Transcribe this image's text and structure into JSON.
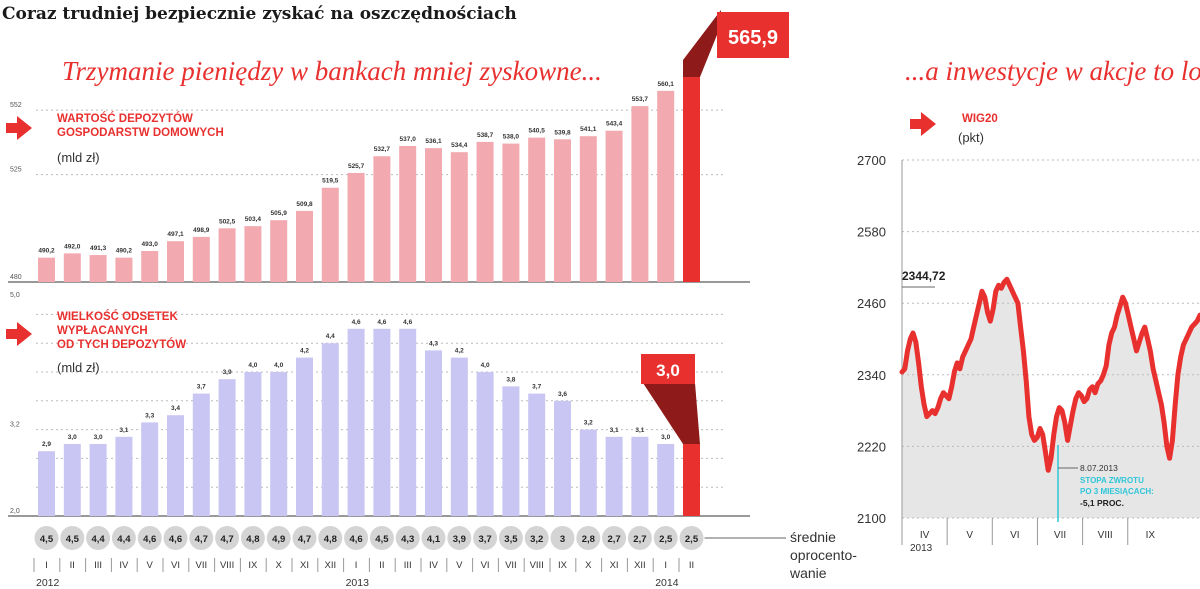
{
  "header": {
    "title": "Coraz trudniej bezpiecznie zyskać na oszczędnościach",
    "subtitle_left": "Trzymanie pieniędzy w bankach mniej zyskowne...",
    "subtitle_right": "...a inwestycje w akcje to lo"
  },
  "colors": {
    "accent": "#e8302f",
    "pink_bar": "#f2aab0",
    "lavender_bar": "#c9c6f3",
    "grey_fill": "#e6e6e6",
    "rate_circle": "#d4d4d4",
    "highlight_dark": "#8e1a1a",
    "cyan": "#2fc6d8"
  },
  "chart_data": [
    {
      "type": "bar",
      "id": "deposits",
      "title": "WARTOŚĆ DEPOZYTÓW GOSPODARSTW DOMOWYCH",
      "title_lines": [
        "WARTOŚĆ DEPOZYTÓW",
        "GOSPODARSTW DOMOWYCH"
      ],
      "unit": "(mld zł)",
      "ylim": [
        480,
        568
      ],
      "ticks": [
        {
          "v": 480,
          "label": "480"
        },
        {
          "v": 525,
          "label": "525"
        },
        {
          "v": 552,
          "label": "552"
        }
      ],
      "values": [
        490.2,
        492.0,
        491.3,
        490.2,
        493.0,
        497.1,
        498.9,
        502.5,
        503.4,
        505.9,
        509.8,
        519.5,
        525.7,
        532.7,
        537.0,
        536.1,
        534.4,
        538.7,
        538.0,
        540.5,
        539.8,
        541.1,
        543.4,
        553.7,
        560.1,
        565.9
      ],
      "labels": [
        "490,2",
        "492,0",
        "491,3",
        "490,2",
        "493,0",
        "497,1",
        "498,9",
        "502,5",
        "503,4",
        "505,9",
        "509,8",
        "519,5",
        "525,7",
        "532,7",
        "537,0",
        "536,1",
        "534,4",
        "538,7",
        "538,0",
        "540,5",
        "539,8",
        "541,1",
        "543,4",
        "553,7",
        "560,1",
        "565,9"
      ],
      "highlight": "565,9"
    },
    {
      "type": "bar",
      "id": "interest",
      "title": "WIELKOŚĆ ODSETEK WYPŁACANYCH OD TYCH DEPOZYTÓW",
      "title_lines": [
        "WIELKOŚĆ ODSETEK",
        "WYPŁACANYCH",
        "OD TYCH DEPOZYTÓW"
      ],
      "unit": "(mld zł)",
      "ylim": [
        2.0,
        5.0
      ],
      "ticks": [
        {
          "v": 2.0,
          "label": "2,0"
        },
        {
          "v": 3.2,
          "label": "3,2"
        },
        {
          "v": 5.0,
          "label": "5,0"
        }
      ],
      "values": [
        2.9,
        3.0,
        3.0,
        3.1,
        3.3,
        3.4,
        3.7,
        3.9,
        4.0,
        4.0,
        4.2,
        4.4,
        4.6,
        4.6,
        4.6,
        4.3,
        4.2,
        4.0,
        3.8,
        3.7,
        3.6,
        3.2,
        3.1,
        3.1,
        3.0,
        3.0
      ],
      "labels": [
        "2,9",
        "3,0",
        "3,0",
        "3,1",
        "3,3",
        "3,4",
        "3,7",
        "3,9",
        "4,0",
        "4,0",
        "4,2",
        "4,4",
        "4,6",
        "4,6",
        "4,6",
        "4,3",
        "4,2",
        "4,0",
        "3,8",
        "3,7",
        "3,6",
        "3,2",
        "3,1",
        "3,1",
        "3,0",
        "3,0"
      ],
      "highlight": "3,0"
    },
    {
      "type": "line",
      "id": "wig20",
      "title": "WIG20",
      "unit": "(pkt)",
      "ylim": [
        2100,
        2700
      ],
      "ticks": [
        "2100",
        "2220",
        "2340",
        "2460",
        "2580",
        "2700"
      ],
      "ticks_values": [
        2100,
        2220,
        2340,
        2460,
        2580,
        2700
      ],
      "start_label": "2344,72",
      "values": [
        2344.72,
        2350,
        2380,
        2400,
        2410,
        2395,
        2360,
        2320,
        2290,
        2270,
        2275,
        2280,
        2275,
        2285,
        2300,
        2310,
        2305,
        2300,
        2320,
        2345,
        2360,
        2350,
        2370,
        2380,
        2390,
        2400,
        2420,
        2440,
        2460,
        2480,
        2470,
        2445,
        2430,
        2450,
        2480,
        2490,
        2485,
        2495,
        2500,
        2490,
        2480,
        2470,
        2460,
        2420,
        2380,
        2330,
        2270,
        2240,
        2230,
        2235,
        2250,
        2240,
        2210,
        2180,
        2200,
        2240,
        2270,
        2285,
        2280,
        2260,
        2230,
        2255,
        2280,
        2300,
        2310,
        2305,
        2295,
        2300,
        2315,
        2320,
        2310,
        2325,
        2330,
        2340,
        2355,
        2390,
        2410,
        2420,
        2440,
        2455,
        2470,
        2460,
        2440,
        2420,
        2400,
        2380,
        2395,
        2410,
        2420,
        2400,
        2380,
        2350,
        2330,
        2310,
        2290,
        2260,
        2220,
        2200,
        2230,
        2290,
        2340,
        2370,
        2390,
        2400,
        2410,
        2420,
        2425,
        2430,
        2440
      ],
      "months": [
        "IV",
        "V",
        "VI",
        "VII",
        "VIII",
        "IX"
      ],
      "year_label": "2013",
      "annotation": {
        "date": "8.07.2013",
        "label": "STOPA ZWROTU",
        "label2": "PO 3 MIESIĄCACH:",
        "value": "-5,1 PROC."
      }
    }
  ],
  "rates": {
    "values": [
      "4,5",
      "4,5",
      "4,4",
      "4,4",
      "4,6",
      "4,6",
      "4,7",
      "4,7",
      "4,8",
      "4,9",
      "4,7",
      "4,8",
      "4,6",
      "4,5",
      "4,3",
      "4,1",
      "3,9",
      "3,7",
      "3,5",
      "3,2",
      "3",
      "2,8",
      "2,7",
      "2,7",
      "2,5",
      "2,5"
    ],
    "caption": [
      "średnie",
      "oprocento-",
      "wanie"
    ]
  },
  "x_axis": {
    "months": [
      "I",
      "II",
      "III",
      "IV",
      "V",
      "VI",
      "VII",
      "VIII",
      "IX",
      "X",
      "XI",
      "XII",
      "I",
      "II",
      "III",
      "IV",
      "V",
      "VI",
      "VII",
      "VIII",
      "IX",
      "X",
      "XI",
      "XII",
      "I",
      "II"
    ],
    "years": [
      {
        "label": "2012",
        "index": 0
      },
      {
        "label": "2013",
        "index": 12
      },
      {
        "label": "2014",
        "index": 24
      }
    ]
  }
}
